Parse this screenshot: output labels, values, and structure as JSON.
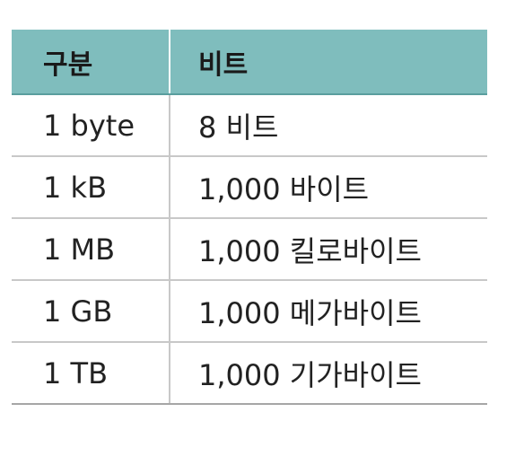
{
  "table": {
    "headers": {
      "unit": "구분",
      "value": "비트"
    },
    "rows": [
      {
        "unit": "1 byte",
        "value": "8 비트"
      },
      {
        "unit": "1 kB",
        "value": "1,000 바이트"
      },
      {
        "unit": "1 MB",
        "value": "1,000 킬로바이트"
      },
      {
        "unit": "1 GB",
        "value": "1,000 메가바이트"
      },
      {
        "unit": "1 TB",
        "value": "1,000 기가바이트"
      }
    ]
  },
  "colors": {
    "header_bg": "#7fbdbd",
    "rule": "#c8c8c8"
  }
}
